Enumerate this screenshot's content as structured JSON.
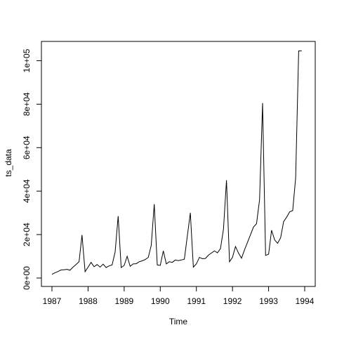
{
  "chart_data": {
    "type": "line",
    "xlabel": "Time",
    "ylabel": "ts_data",
    "xlim": [
      1987,
      1994
    ],
    "ylim": [
      0,
      105000
    ],
    "x_ticks": [
      1987,
      1988,
      1989,
      1990,
      1991,
      1992,
      1993,
      1994
    ],
    "x_tick_labels": [
      "1987",
      "1988",
      "1989",
      "1990",
      "1991",
      "1992",
      "1993",
      "1994"
    ],
    "y_ticks": [
      0,
      20000,
      40000,
      60000,
      80000,
      100000
    ],
    "y_tick_labels": [
      "0e+00",
      "2e+04",
      "4e+04",
      "6e+04",
      "8e+04",
      "1e+05"
    ],
    "series": [
      {
        "x": [
          1987.0,
          1987.083,
          1987.167,
          1987.25,
          1987.333,
          1987.417,
          1987.5,
          1987.583,
          1987.667,
          1987.75,
          1987.833,
          1987.917,
          1988.0,
          1988.083,
          1988.167,
          1988.25,
          1988.333,
          1988.417,
          1988.5,
          1988.583,
          1988.667,
          1988.75,
          1988.833,
          1988.917,
          1989.0,
          1989.083,
          1989.167,
          1989.25,
          1989.333,
          1989.417,
          1989.5,
          1989.583,
          1989.667,
          1989.75,
          1989.833,
          1989.917,
          1990.0,
          1990.083,
          1990.167,
          1990.25,
          1990.333,
          1990.417,
          1990.5,
          1990.583,
          1990.667,
          1990.75,
          1990.833,
          1990.917,
          1991.0,
          1991.083,
          1991.167,
          1991.25,
          1991.333,
          1991.417,
          1991.5,
          1991.583,
          1991.667,
          1991.75,
          1991.833,
          1991.917,
          1992.0,
          1992.083,
          1992.167,
          1992.25,
          1992.333,
          1992.417,
          1992.5,
          1992.583,
          1992.667,
          1992.75,
          1992.833,
          1992.917,
          1993.0,
          1993.083,
          1993.167,
          1993.25,
          1993.333,
          1993.417,
          1993.5,
          1993.583,
          1993.667,
          1993.75,
          1993.833,
          1993.917
        ],
        "y": [
          1700,
          2400,
          3000,
          3700,
          3800,
          4000,
          3600,
          5000,
          6200,
          7500,
          19800,
          2900,
          5000,
          7200,
          5200,
          6200,
          5000,
          6400,
          4800,
          5600,
          6000,
          12000,
          28500,
          4800,
          5800,
          10000,
          5400,
          6500,
          6600,
          7500,
          7900,
          8500,
          9500,
          15000,
          34000,
          6000,
          5800,
          12500,
          6500,
          7500,
          7200,
          8300,
          8000,
          8300,
          8700,
          19500,
          30000,
          5000,
          6500,
          9500,
          8900,
          9000,
          10500,
          11500,
          12500,
          11600,
          13500,
          22500,
          45000,
          7500,
          9500,
          14500,
          11500,
          9100,
          13000,
          16500,
          20000,
          23500,
          25000,
          36000,
          80500,
          10400,
          11000,
          22000,
          17500,
          16000,
          18500,
          26000,
          28000,
          30500,
          31000,
          46000,
          104500,
          104500
        ]
      }
    ]
  }
}
